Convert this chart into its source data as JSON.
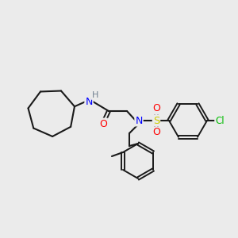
{
  "background_color": "#ebebeb",
  "bond_color": "#1a1a1a",
  "atom_colors": {
    "N": "#0000ff",
    "O": "#ff0000",
    "S": "#cccc00",
    "Cl": "#00bb00",
    "H": "#708090",
    "C": "#1a1a1a"
  },
  "figsize": [
    3.0,
    3.0
  ],
  "dpi": 100
}
